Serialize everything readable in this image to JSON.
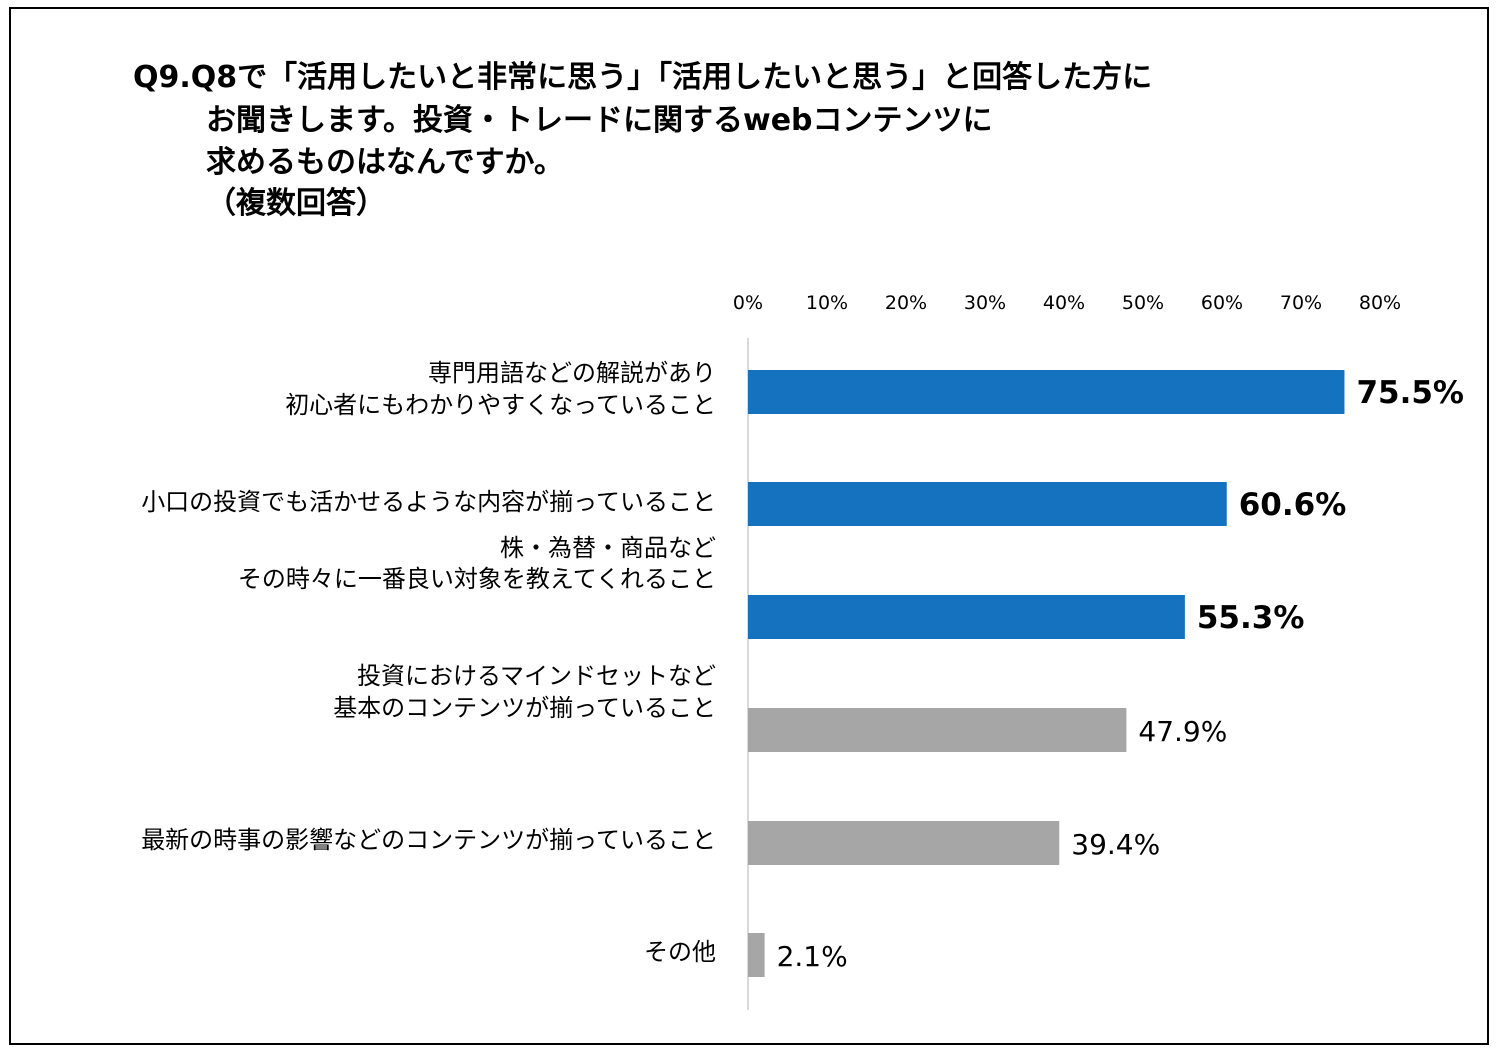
{
  "title_lines": [
    "Q9.Q8で「活用したいと非常に思う」「活用したいと思う」と回答した方に",
    "お聞きします。投資・トレードに関するwebコンテンツに",
    "求めるものはなんですか。",
    "（複数回答）"
  ],
  "chart_data": {
    "type": "bar",
    "orientation": "horizontal",
    "title": "Q9.Q8で「活用したいと非常に思う」「活用したいと思う」と回答した方にお聞きします。投資・トレードに関するwebコンテンツに求めるものはなんですか。（複数回答）",
    "xlim": [
      0,
      80
    ],
    "ticks": [
      0,
      10,
      20,
      30,
      40,
      50,
      60,
      70,
      80
    ],
    "tick_labels": [
      "0%",
      "10%",
      "20%",
      "30%",
      "40%",
      "50%",
      "60%",
      "70%",
      "80%"
    ],
    "grid": false,
    "categories": [
      [
        "専門用語などの解説があり",
        "初心者にもわかりやすくなっていること"
      ],
      [
        "小口の投資でも活かせるような内容が揃っていること"
      ],
      [
        "株・為替・商品など",
        "その時々に一番良い対象を教えてくれること"
      ],
      [
        "投資におけるマインドセットなど",
        "基本のコンテンツが揃っていること"
      ],
      [
        "最新の時事の影響などのコンテンツが揃っていること"
      ],
      [
        "その他"
      ]
    ],
    "values": [
      75.5,
      60.6,
      55.3,
      47.9,
      39.4,
      2.1
    ],
    "value_labels": [
      "75.5%",
      "60.6%",
      "55.3%",
      "47.9%",
      "39.4%",
      "2.1%"
    ],
    "highlighted": [
      true,
      true,
      true,
      false,
      false,
      false
    ],
    "colors": {
      "highlight": "#1472BE",
      "normal": "#A6A6A6",
      "axis": "#D9D9D9"
    }
  }
}
